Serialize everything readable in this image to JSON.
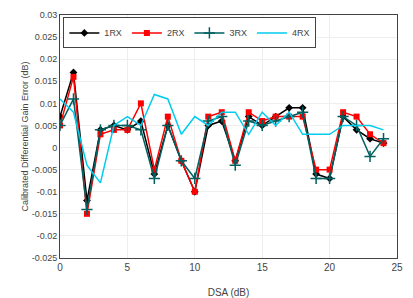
{
  "chart_data": {
    "type": "line",
    "xlabel": "DSA (dB)",
    "ylabel": "Calibrated Differential Gain Error (dB)",
    "x": [
      0,
      1,
      2,
      3,
      4,
      5,
      6,
      7,
      8,
      9,
      10,
      11,
      12,
      13,
      14,
      15,
      16,
      17,
      18,
      19,
      20,
      21,
      22,
      23,
      24
    ],
    "series": [
      {
        "name": "1RX",
        "color": "#000000",
        "marker": "diamond",
        "values": [
          0.007,
          0.017,
          -0.012,
          0.004,
          0.005,
          0.004,
          0.006,
          -0.006,
          0.005,
          -0.003,
          -0.01,
          0.005,
          0.006,
          -0.003,
          0.007,
          0.005,
          0.007,
          0.009,
          0.009,
          -0.006,
          -0.007,
          0.007,
          0.004,
          0.002,
          0.001
        ]
      },
      {
        "name": "2RX",
        "color": "#ff0000",
        "marker": "square",
        "values": [
          0.005,
          0.016,
          -0.015,
          0.003,
          0.004,
          0.004,
          0.01,
          -0.005,
          0.007,
          -0.003,
          -0.01,
          0.007,
          0.008,
          -0.003,
          0.008,
          0.006,
          0.007,
          0.007,
          0.007,
          -0.005,
          -0.005,
          0.008,
          0.007,
          0.003,
          0.001
        ]
      },
      {
        "name": "3RX",
        "color": "#005f5f",
        "marker": "plus",
        "values": [
          0.005,
          0.011,
          -0.014,
          0.004,
          0.005,
          0.005,
          0.004,
          -0.007,
          0.005,
          -0.003,
          -0.007,
          0.006,
          0.007,
          -0.004,
          0.006,
          0.005,
          0.006,
          0.007,
          0.008,
          -0.007,
          -0.007,
          0.007,
          0.005,
          -0.002,
          0.002
        ]
      },
      {
        "name": "4RX",
        "color": "#00ccee",
        "marker": "none",
        "values": [
          0.011,
          0.008,
          -0.004,
          -0.008,
          0.005,
          0.007,
          0.005,
          0.012,
          0.011,
          0.003,
          0.007,
          0.005,
          0.008,
          0.008,
          0.003,
          0.008,
          0.005,
          0.008,
          0.003,
          0.003,
          0.003,
          0.005,
          0.005,
          0.005,
          0.004
        ]
      }
    ],
    "xlim": [
      0,
      25
    ],
    "ylim": [
      -0.025,
      0.03
    ],
    "xticks": [
      0,
      5,
      10,
      15,
      20,
      25
    ],
    "yticks": [
      -0.025,
      -0.02,
      -0.015,
      -0.01,
      -0.005,
      0,
      0.005,
      0.01,
      0.015,
      0.02,
      0.025,
      0.03
    ],
    "grid": true,
    "legend": "upper left"
  }
}
